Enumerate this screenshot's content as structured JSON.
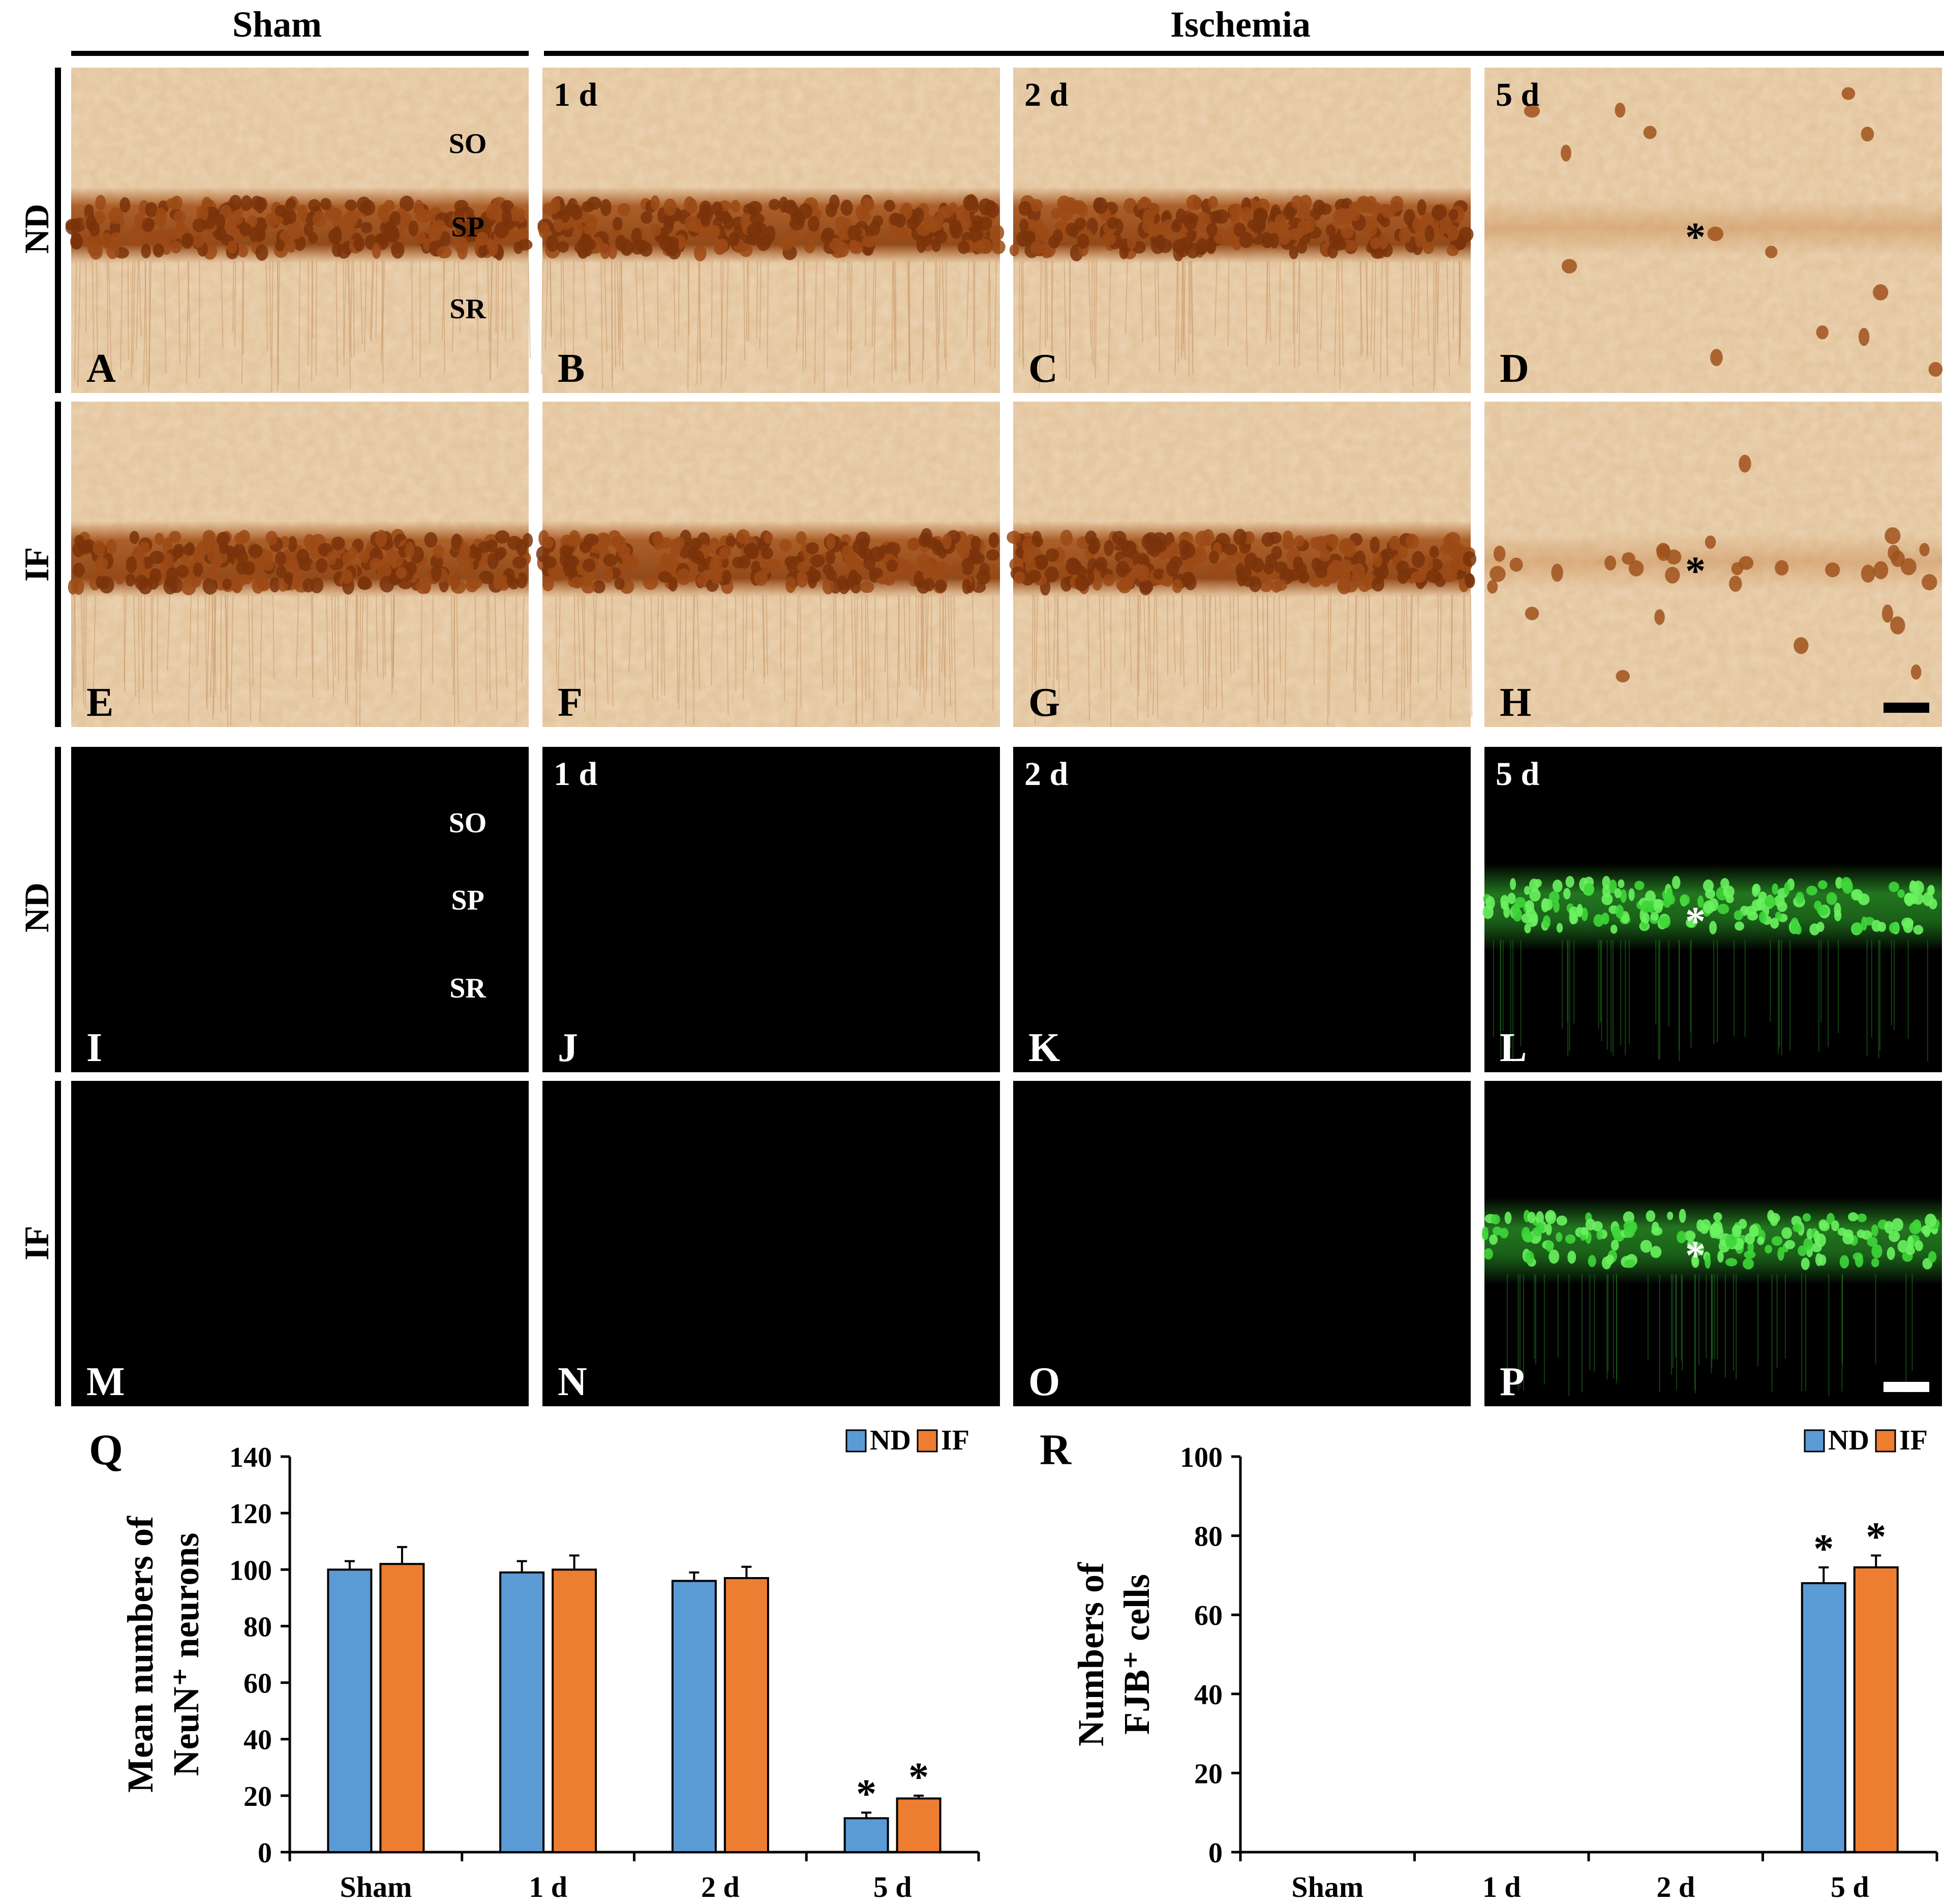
{
  "header": {
    "left": "Sham",
    "right": "Ischemia"
  },
  "row_labels": {
    "r1": "ND",
    "r2": "IF",
    "r3": "ND",
    "r4": "IF"
  },
  "time_labels": [
    "1 d",
    "2 d",
    "5 d"
  ],
  "layers": {
    "so": "SO",
    "sp": "SP",
    "sr": "SR"
  },
  "panel_letters": [
    "A",
    "B",
    "C",
    "D",
    "E",
    "F",
    "G",
    "H",
    "I",
    "J",
    "K",
    "L",
    "M",
    "N",
    "O",
    "P"
  ],
  "asterisk": "*",
  "colors": {
    "brown_bg": "#ecd4b4",
    "brown_band": "#a5531b",
    "fluor_bg": "#000000",
    "green": "#3fd63a",
    "nd": "#5b9bd5",
    "if": "#ed7d31"
  },
  "chart_data": [
    {
      "type": "bar",
      "panel": "Q",
      "title": "",
      "ylabel_lines": [
        "Mean numbers of",
        "NeuN⁺ neurons"
      ],
      "xlabel": "",
      "categories": [
        "Sham",
        "1 d",
        "2 d",
        "5 d"
      ],
      "series": [
        {
          "name": "ND",
          "values": [
            100,
            99,
            96,
            12
          ],
          "errors": [
            3,
            4,
            3,
            2
          ]
        },
        {
          "name": "IF",
          "values": [
            102,
            100,
            97,
            19
          ],
          "errors": [
            6,
            5,
            4,
            1
          ]
        }
      ],
      "significance": [
        "",
        "",
        "",
        "*"
      ],
      "ylim": [
        0,
        140
      ],
      "yticks": [
        "0",
        "20",
        "40",
        "60",
        "80",
        "100",
        "120",
        "140"
      ],
      "legend": "top-right"
    },
    {
      "type": "bar",
      "panel": "R",
      "title": "",
      "ylabel_lines": [
        "Numbers of",
        "FJB⁺ cells"
      ],
      "xlabel": "",
      "categories": [
        "Sham",
        "1 d",
        "2 d",
        "5 d"
      ],
      "series": [
        {
          "name": "ND",
          "values": [
            0,
            0,
            0,
            68
          ],
          "errors": [
            0,
            0,
            0,
            4
          ]
        },
        {
          "name": "IF",
          "values": [
            0,
            0,
            0,
            72
          ],
          "errors": [
            0,
            0,
            0,
            3
          ]
        }
      ],
      "significance": [
        "",
        "",
        "",
        "*"
      ],
      "ylim": [
        0,
        100
      ],
      "yticks": [
        "0",
        "20",
        "40",
        "60",
        "80",
        "100"
      ],
      "legend": "top-right"
    }
  ]
}
